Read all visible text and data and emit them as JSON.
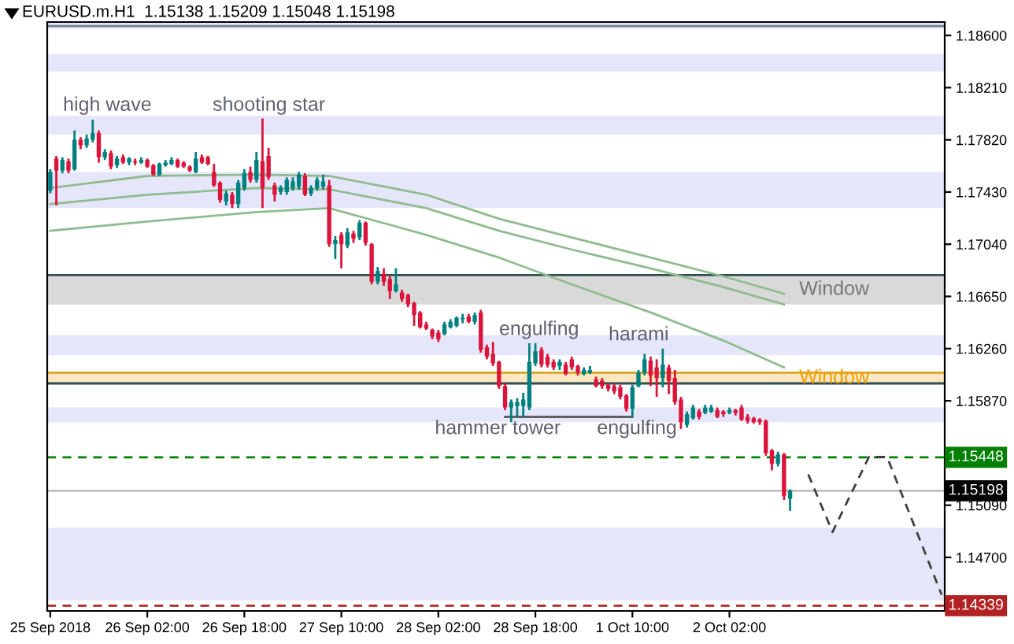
{
  "chart_data": {
    "type": "candlestick",
    "title": "EURUSD.m.H1  1.15138 1.15209 1.15048 1.15198",
    "categories": [
      "25 Sep 2018",
      null,
      null,
      null,
      null,
      null,
      null,
      null,
      null,
      null,
      null,
      null,
      null,
      null,
      null,
      null,
      "26 Sep 02:00",
      null,
      null,
      null,
      null,
      null,
      null,
      null,
      null,
      null,
      null,
      null,
      null,
      null,
      null,
      null,
      "26 Sep 18:00",
      null,
      null,
      null,
      null,
      null,
      null,
      null,
      null,
      null,
      null,
      null,
      null,
      null,
      null,
      null,
      "27 Sep 10:00",
      null,
      null,
      null,
      null,
      null,
      null,
      null,
      null,
      null,
      null,
      null,
      null,
      null,
      null,
      null,
      "28 Sep 02:00",
      null,
      null,
      null,
      null,
      null,
      null,
      null,
      null,
      null,
      null,
      null,
      null,
      null,
      null,
      null,
      "28 Sep 18:00",
      null,
      null,
      null,
      null,
      null,
      null,
      null,
      null,
      null,
      null,
      null,
      null,
      null,
      null,
      null,
      "1 Oct 10:00",
      null,
      null,
      null,
      null,
      null,
      null,
      null,
      null,
      null,
      null,
      null,
      null,
      null,
      null,
      null,
      "2 Oct 02:00",
      null,
      null,
      null,
      null,
      null,
      null,
      null,
      null,
      null,
      null,
      null,
      null,
      null,
      null,
      null,
      null,
      null,
      null,
      null,
      null,
      null,
      null,
      null,
      null,
      null,
      null,
      null,
      null,
      null,
      null,
      null,
      null,
      null,
      null,
      null
    ],
    "colors": [
      "#008080",
      "#dc143c",
      "#008080",
      "#dc143c",
      "#008080",
      "#dc143c",
      "#008080",
      "#008080",
      "#dc143c",
      "#008080",
      "#dc143c",
      "#008080",
      "#dc143c",
      "#008080",
      "#dc143c",
      "#008080",
      "#dc143c",
      "#dc143c",
      "#008080",
      "#008080",
      "#008080",
      "#dc143c",
      "#dc143c",
      "#dc143c",
      "#008080",
      "#dc143c",
      "#dc143c",
      "#dc143c",
      "#dc143c",
      "#008080",
      "#dc143c",
      "#008080",
      "#008080",
      "#dc143c",
      "#008080",
      "#dc143c",
      "#dc143c",
      "#dc143c",
      "#008080",
      "#008080",
      "#008080",
      "#008080",
      "#dc143c",
      "#008080",
      "#008080",
      "#008080",
      "#dc143c",
      "#008080",
      "#dc143c",
      "#008080",
      "#dc143c",
      "#008080",
      "#dc143c",
      "#dc143c",
      "#008080",
      "#dc143c",
      "#dc143c",
      "#008080",
      "#dc143c",
      "#dc143c",
      "#dc143c",
      "#dc143c",
      "#dc143c",
      "#dc143c",
      "#dc143c",
      "#008080",
      "#008080",
      "#008080",
      "#008080",
      "#dc143c",
      "#008080",
      "#dc143c",
      "#dc143c",
      "#dc143c",
      "#dc143c",
      "#dc143c",
      "#008080",
      "#008080",
      "#008080",
      "#008080",
      "#008080",
      "#dc143c",
      "#dc143c",
      "#dc143c",
      "#008080",
      "#dc143c",
      "#dc143c",
      "#dc143c",
      "#008080",
      "#008080",
      "#dc143c",
      "#dc143c",
      "#dc143c",
      "#dc143c",
      "#dc143c",
      "#dc143c",
      "#008080",
      "#008080",
      "#008080",
      "#dc143c",
      "#dc143c",
      "#008080",
      "#dc143c",
      "#dc143c",
      "#dc143c",
      "#008080",
      "#008080",
      "#dc143c",
      "#008080",
      "#008080",
      "#dc143c",
      "#dc143c",
      "#008080",
      "#dc143c",
      "#dc143c",
      "#dc143c",
      "#dc143c",
      "#dc143c",
      "#dc143c",
      "#dc143c",
      "#008080",
      "#dc143c",
      "#008080",
      null,
      null,
      null,
      null,
      null,
      null,
      null,
      null,
      null,
      null,
      null,
      null,
      null,
      null,
      null,
      null,
      null,
      null,
      null,
      null,
      null,
      null,
      null,
      null,
      null
    ],
    "ohlc": [
      [
        1.1744,
        1.176,
        1.1742,
        1.1758
      ],
      [
        1.1768,
        1.177,
        1.1733,
        1.1759
      ],
      [
        1.1759,
        1.1769,
        1.1757,
        1.1767
      ],
      [
        1.1766,
        1.1768,
        1.1757,
        1.1759
      ],
      [
        1.176,
        1.1789,
        1.1759,
        1.1782
      ],
      [
        1.1782,
        1.1784,
        1.1775,
        1.1778
      ],
      [
        1.1778,
        1.1786,
        1.1776,
        1.1783
      ],
      [
        1.1782,
        1.1797,
        1.178,
        1.1787
      ],
      [
        1.1787,
        1.1789,
        1.1765,
        1.1769
      ],
      [
        1.1769,
        1.1775,
        1.1767,
        1.1773
      ],
      [
        1.1772,
        1.1774,
        1.176,
        1.1762
      ],
      [
        1.1763,
        1.177,
        1.1761,
        1.1768
      ],
      [
        1.1769,
        1.1771,
        1.1764,
        1.1765
      ],
      [
        1.1765,
        1.1769,
        1.1763,
        1.1768
      ],
      [
        1.1766,
        1.1768,
        1.1763,
        1.1765
      ],
      [
        1.1765,
        1.1769,
        1.1764,
        1.1767
      ],
      [
        1.1767,
        1.1768,
        1.1761,
        1.1762
      ],
      [
        1.1763,
        1.1764,
        1.1755,
        1.1756
      ],
      [
        1.1756,
        1.1765,
        1.1755,
        1.1764
      ],
      [
        1.1763,
        1.1767,
        1.1762,
        1.1765
      ],
      [
        1.1764,
        1.1769,
        1.1763,
        1.1767
      ],
      [
        1.1767,
        1.1768,
        1.1761,
        1.1762
      ],
      [
        1.1765,
        1.1766,
        1.1761,
        1.1762
      ],
      [
        1.1762,
        1.1763,
        1.1758,
        1.1759
      ],
      [
        1.1758,
        1.1773,
        1.1757,
        1.1768
      ],
      [
        1.1769,
        1.1771,
        1.1764,
        1.1765
      ],
      [
        1.1769,
        1.177,
        1.1763,
        1.1764
      ],
      [
        1.1758,
        1.1764,
        1.1747,
        1.1748
      ],
      [
        1.175,
        1.1751,
        1.1735,
        1.1737
      ],
      [
        1.1736,
        1.1744,
        1.1733,
        1.1742
      ],
      [
        1.1741,
        1.1743,
        1.1731,
        1.1734
      ],
      [
        1.1734,
        1.1752,
        1.1731,
        1.175
      ],
      [
        1.1746,
        1.176,
        1.1744,
        1.1757
      ],
      [
        1.1758,
        1.1762,
        1.175,
        1.1752
      ],
      [
        1.1752,
        1.1773,
        1.175,
        1.1767
      ],
      [
        1.1766,
        1.1798,
        1.1731,
        1.1746
      ],
      [
        1.177,
        1.1776,
        1.1752,
        1.1754
      ],
      [
        1.1748,
        1.175,
        1.1736,
        1.1741
      ],
      [
        1.1743,
        1.1748,
        1.1741,
        1.1746
      ],
      [
        1.1743,
        1.1754,
        1.1741,
        1.1752
      ],
      [
        1.1746,
        1.1754,
        1.1744,
        1.1751
      ],
      [
        1.1747,
        1.1758,
        1.1745,
        1.1756
      ],
      [
        1.1755,
        1.1757,
        1.174,
        1.1741
      ],
      [
        1.1742,
        1.1748,
        1.174,
        1.1746
      ],
      [
        1.1746,
        1.1754,
        1.1744,
        1.1752
      ],
      [
        1.1747,
        1.1756,
        1.1745,
        1.1751
      ],
      [
        1.1748,
        1.1752,
        1.1702,
        1.1704
      ],
      [
        1.1704,
        1.171,
        1.1693,
        1.1707
      ],
      [
        1.1711,
        1.1713,
        1.1686,
        1.1704
      ],
      [
        1.1703,
        1.1716,
        1.1701,
        1.1713
      ],
      [
        1.1712,
        1.1714,
        1.1705,
        1.1708
      ],
      [
        1.1709,
        1.1722,
        1.1707,
        1.172
      ],
      [
        1.172,
        1.1721,
        1.1703,
        1.1705
      ],
      [
        1.1704,
        1.1705,
        1.1674,
        1.1676
      ],
      [
        1.1676,
        1.1687,
        1.1674,
        1.1684
      ],
      [
        1.1682,
        1.1686,
        1.1673,
        1.1676
      ],
      [
        1.1678,
        1.168,
        1.1663,
        1.1669
      ],
      [
        1.1669,
        1.1686,
        1.1668,
        1.1674
      ],
      [
        1.1668,
        1.167,
        1.1661,
        1.1663
      ],
      [
        1.1666,
        1.1667,
        1.1657,
        1.1659
      ],
      [
        1.166,
        1.1661,
        1.1643,
        1.1651
      ],
      [
        1.1653,
        1.1654,
        1.1641,
        1.1642
      ],
      [
        1.1644,
        1.1646,
        1.164,
        1.1641
      ],
      [
        1.164,
        1.1641,
        1.1633,
        1.1635
      ],
      [
        1.1638,
        1.164,
        1.1631,
        1.1633
      ],
      [
        1.1637,
        1.1646,
        1.1636,
        1.1644
      ],
      [
        1.1642,
        1.1648,
        1.1641,
        1.1646
      ],
      [
        1.1643,
        1.165,
        1.1642,
        1.1649
      ],
      [
        1.1648,
        1.1652,
        1.1645,
        1.1649
      ],
      [
        1.165,
        1.1652,
        1.1645,
        1.1646
      ],
      [
        1.1646,
        1.1653,
        1.1644,
        1.1651
      ],
      [
        1.1653,
        1.1655,
        1.1623,
        1.1625
      ],
      [
        1.1627,
        1.1629,
        1.1618,
        1.162
      ],
      [
        1.1622,
        1.1631,
        1.1613,
        1.1615
      ],
      [
        1.1616,
        1.1617,
        1.1596,
        1.1598
      ],
      [
        1.1598,
        1.16,
        1.158,
        1.1582
      ],
      [
        1.1582,
        1.1588,
        1.1571,
        1.1586
      ],
      [
        1.1583,
        1.1589,
        1.1575,
        1.1586
      ],
      [
        1.1583,
        1.1593,
        1.1575,
        1.1588
      ],
      [
        1.1582,
        1.163,
        1.158,
        1.1616
      ],
      [
        1.1615,
        1.163,
        1.1613,
        1.1624
      ],
      [
        1.1625,
        1.1627,
        1.1612,
        1.1614
      ],
      [
        1.162,
        1.1622,
        1.1612,
        1.1614
      ],
      [
        1.1616,
        1.1618,
        1.161,
        1.1612
      ],
      [
        1.1613,
        1.1618,
        1.161,
        1.1616
      ],
      [
        1.1614,
        1.1616,
        1.1606,
        1.1607
      ],
      [
        1.1618,
        1.162,
        1.161,
        1.1612
      ],
      [
        1.1613,
        1.1614,
        1.1606,
        1.1608
      ],
      [
        1.1607,
        1.1612,
        1.1606,
        1.161
      ],
      [
        1.1608,
        1.1613,
        1.1607,
        1.161
      ],
      [
        1.1603,
        1.1605,
        1.1597,
        1.1598
      ],
      [
        1.1602,
        1.1604,
        1.1596,
        1.1598
      ],
      [
        1.1599,
        1.16,
        1.1594,
        1.1596
      ],
      [
        1.1598,
        1.16,
        1.1592,
        1.1594
      ],
      [
        1.1597,
        1.1599,
        1.1588,
        1.159
      ],
      [
        1.1591,
        1.1592,
        1.1579,
        1.1581
      ],
      [
        1.1581,
        1.1599,
        1.1575,
        1.1597
      ],
      [
        1.1598,
        1.161,
        1.1597,
        1.1608
      ],
      [
        1.1608,
        1.1622,
        1.1606,
        1.1618
      ],
      [
        1.1617,
        1.162,
        1.1598,
        1.1606
      ],
      [
        1.1612,
        1.1618,
        1.159,
        1.1604
      ],
      [
        1.1604,
        1.1626,
        1.1597,
        1.1614
      ],
      [
        1.1612,
        1.1614,
        1.1592,
        1.1602
      ],
      [
        1.1604,
        1.161,
        1.1584,
        1.1586
      ],
      [
        1.1588,
        1.159,
        1.1566,
        1.1571
      ],
      [
        1.1569,
        1.1579,
        1.1567,
        1.1577
      ],
      [
        1.1574,
        1.1584,
        1.1573,
        1.1582
      ],
      [
        1.1579,
        1.1581,
        1.1573,
        1.1575
      ],
      [
        1.1578,
        1.1584,
        1.1577,
        1.1582
      ],
      [
        1.1579,
        1.1584,
        1.1578,
        1.1582
      ],
      [
        1.158,
        1.1582,
        1.1574,
        1.1575
      ],
      [
        1.1579,
        1.158,
        1.1575,
        1.1577
      ],
      [
        1.1578,
        1.1582,
        1.1577,
        1.158
      ],
      [
        1.158,
        1.1581,
        1.1576,
        1.1578
      ],
      [
        1.1582,
        1.1584,
        1.1572,
        1.1573
      ],
      [
        1.1575,
        1.1577,
        1.157,
        1.1572
      ],
      [
        1.1574,
        1.1575,
        1.157,
        1.1571
      ],
      [
        1.1573,
        1.1574,
        1.1569,
        1.1571
      ],
      [
        1.1572,
        1.1573,
        1.1546,
        1.1548
      ],
      [
        1.155,
        1.1551,
        1.1535,
        1.154
      ],
      [
        1.154,
        1.1549,
        1.1538,
        1.1547
      ],
      [
        1.1547,
        1.1548,
        1.1513,
        1.1516
      ],
      [
        1.15138,
        1.15209,
        1.15048,
        1.15198
      ],
      null,
      null,
      null,
      null,
      null,
      null,
      null,
      null,
      null,
      null,
      null,
      null,
      null,
      null,
      null,
      null,
      null,
      null,
      null,
      null,
      null,
      null,
      null,
      null,
      null
    ],
    "series": [
      {
        "type": "line",
        "color": "#8fbc8f",
        "values": [
          1.1746,
          null,
          null,
          null,
          null,
          null,
          null,
          null,
          null,
          null,
          null,
          null,
          null,
          null,
          null,
          null,
          1.1755,
          null,
          null,
          null,
          null,
          null,
          null,
          null,
          null,
          null,
          null,
          null,
          null,
          null,
          null,
          null,
          null,
          null,
          1.1756,
          null,
          null,
          null,
          null,
          null,
          null,
          null,
          null,
          null,
          null,
          null,
          1.1755,
          null,
          null,
          null,
          null,
          null,
          null,
          null,
          null,
          null,
          null,
          null,
          null,
          null,
          null,
          null,
          1.1741,
          null,
          null,
          null,
          null,
          null,
          null,
          null,
          null,
          null,
          null,
          null,
          1.1723,
          null,
          null,
          null,
          null,
          null,
          null,
          null,
          null,
          null,
          null,
          null,
          1.1709,
          null,
          null,
          null,
          null,
          null,
          null,
          null,
          null,
          null,
          null,
          null,
          null,
          1.1694,
          null,
          null,
          null,
          null,
          null,
          null,
          null,
          null,
          null,
          null,
          null,
          1.168,
          null,
          null,
          null,
          null,
          null,
          null,
          null,
          null,
          null,
          1.1667,
          null,
          null,
          null,
          null,
          null,
          null,
          null,
          null,
          null,
          null,
          null,
          null,
          null,
          null,
          null,
          null,
          null,
          null,
          null,
          null,
          null,
          null,
          null,
          null,
          null,
          null
        ]
      },
      {
        "type": "line",
        "color": "#8fbc8f",
        "values": [
          1.1734,
          null,
          null,
          null,
          null,
          null,
          null,
          null,
          null,
          null,
          null,
          null,
          null,
          null,
          null,
          null,
          1.1741,
          null,
          null,
          null,
          null,
          null,
          null,
          null,
          null,
          null,
          null,
          null,
          null,
          null,
          null,
          null,
          null,
          null,
          1.1746,
          null,
          null,
          null,
          null,
          null,
          null,
          null,
          null,
          null,
          null,
          null,
          1.1745,
          null,
          null,
          null,
          null,
          null,
          null,
          null,
          null,
          null,
          null,
          null,
          null,
          null,
          null,
          null,
          1.1731,
          null,
          null,
          null,
          null,
          null,
          null,
          null,
          null,
          null,
          null,
          null,
          1.1714,
          null,
          null,
          null,
          null,
          null,
          null,
          null,
          null,
          null,
          null,
          null,
          1.17,
          null,
          null,
          null,
          null,
          null,
          null,
          null,
          null,
          null,
          null,
          null,
          null,
          1.1686,
          null,
          null,
          null,
          null,
          null,
          null,
          null,
          null,
          null,
          null,
          null,
          1.1672,
          null,
          null,
          null,
          null,
          null,
          null,
          null,
          null,
          null,
          1.1659,
          null,
          null,
          null,
          null,
          null,
          null,
          null,
          null,
          null,
          null,
          null,
          null,
          null,
          null,
          null,
          null,
          null,
          null,
          null,
          null,
          null,
          null,
          null,
          null,
          null,
          null
        ]
      },
      {
        "type": "line",
        "color": "#8fbc8f",
        "values": [
          1.1714,
          null,
          null,
          null,
          null,
          null,
          null,
          null,
          null,
          null,
          null,
          null,
          null,
          null,
          null,
          null,
          1.1721,
          null,
          null,
          null,
          null,
          null,
          null,
          null,
          null,
          null,
          null,
          null,
          null,
          null,
          null,
          null,
          null,
          null,
          1.1728,
          null,
          null,
          null,
          null,
          null,
          null,
          null,
          null,
          null,
          null,
          null,
          1.1731,
          null,
          null,
          null,
          null,
          null,
          null,
          null,
          null,
          null,
          null,
          null,
          null,
          null,
          null,
          null,
          1.1711,
          null,
          null,
          null,
          null,
          null,
          null,
          null,
          null,
          null,
          null,
          null,
          1.1694,
          null,
          null,
          null,
          null,
          null,
          null,
          null,
          null,
          null,
          null,
          null,
          1.1674,
          null,
          null,
          null,
          null,
          null,
          null,
          null,
          null,
          null,
          null,
          null,
          null,
          1.1653,
          null,
          null,
          null,
          null,
          null,
          null,
          null,
          null,
          null,
          null,
          null,
          1.1632,
          null,
          null,
          null,
          null,
          null,
          null,
          null,
          null,
          null,
          1.1612,
          null,
          null,
          null,
          null,
          null,
          null,
          null,
          null,
          null,
          null,
          null,
          null,
          null,
          null,
          null,
          null,
          null,
          null,
          null,
          null,
          null,
          null,
          null,
          null,
          null,
          null
        ]
      },
      {
        "type": "line",
        "color": "#606060",
        "values": [
          null,
          null,
          null,
          null,
          null,
          null,
          null,
          null,
          null,
          null,
          null,
          null,
          null,
          null,
          null,
          null,
          null,
          null,
          null,
          null,
          null,
          null,
          null,
          null,
          null,
          null,
          null,
          null,
          null,
          null,
          null,
          null,
          null,
          null,
          null,
          null,
          null,
          null,
          null,
          null,
          null,
          null,
          null,
          null,
          null,
          null,
          null,
          null,
          null,
          null,
          null,
          null,
          null,
          null,
          null,
          null,
          null,
          null,
          null,
          null,
          null,
          null,
          null,
          null,
          null,
          null,
          null,
          null,
          null,
          null,
          null,
          null,
          null,
          null,
          null,
          1.1575,
          null,
          null,
          null,
          null,
          null,
          null,
          null,
          null,
          null,
          null,
          null,
          null,
          null,
          null,
          null,
          null,
          null,
          null,
          null,
          null,
          1.1575,
          null,
          null,
          null,
          null,
          null,
          null,
          null,
          null,
          null,
          null,
          null,
          null,
          null,
          null,
          null,
          null,
          null,
          null,
          null,
          null,
          null,
          null,
          null,
          null,
          null,
          null,
          null,
          null,
          null,
          null,
          null,
          null,
          null,
          null,
          null,
          null,
          null,
          null,
          null,
          null,
          null,
          null,
          null,
          null,
          null,
          null,
          null,
          null,
          null,
          null,
          null
        ]
      },
      {
        "type": "line",
        "color": "#404040",
        "line_style": "dashed",
        "values": [
          null,
          null,
          null,
          null,
          null,
          null,
          null,
          null,
          null,
          null,
          null,
          null,
          null,
          null,
          null,
          null,
          null,
          null,
          null,
          null,
          null,
          null,
          null,
          null,
          null,
          null,
          null,
          null,
          null,
          null,
          null,
          null,
          null,
          null,
          null,
          null,
          null,
          null,
          null,
          null,
          null,
          null,
          null,
          null,
          null,
          null,
          null,
          null,
          null,
          null,
          null,
          null,
          null,
          null,
          null,
          null,
          null,
          null,
          null,
          null,
          null,
          null,
          null,
          null,
          null,
          null,
          null,
          null,
          null,
          null,
          null,
          null,
          null,
          null,
          null,
          null,
          null,
          null,
          null,
          null,
          null,
          null,
          null,
          null,
          null,
          null,
          null,
          null,
          null,
          null,
          null,
          null,
          null,
          null,
          null,
          null,
          null,
          null,
          null,
          null,
          null,
          null,
          null,
          null,
          null,
          null,
          null,
          null,
          null,
          null,
          null,
          null,
          null,
          null,
          null,
          null,
          null,
          null,
          null,
          null,
          null,
          null,
          null,
          null,
          null,
          1.1532,
          null,
          null,
          null,
          1.1489,
          null,
          null,
          null,
          null,
          null,
          1.1545,
          null,
          null,
          1.1545,
          null,
          null,
          null,
          null,
          null,
          null,
          null,
          null,
          1.1442
        ]
      }
    ],
    "bands": [
      {
        "axis": "y",
        "from": 1.1865,
        "to": 1.187,
        "color": "#e6e6fa"
      },
      {
        "axis": "y",
        "from": 1.1833,
        "to": 1.1846,
        "color": "#e6e6fa"
      },
      {
        "axis": "y",
        "from": 1.1786,
        "to": 1.18,
        "color": "#e6e6fa"
      },
      {
        "axis": "y",
        "from": 1.1731,
        "to": 1.1758,
        "color": "#e6e6fa"
      },
      {
        "axis": "y",
        "from": 1.1659,
        "to": 1.1681,
        "color": "#d9d9d9",
        "label": "Window"
      },
      {
        "axis": "y",
        "from": 1.1621,
        "to": 1.1636,
        "color": "#e6e6fa"
      },
      {
        "axis": "y",
        "from": 1.16,
        "to": 1.1608,
        "color": "#fbe7c2",
        "label": "Window"
      },
      {
        "axis": "y",
        "from": 1.1571,
        "to": 1.1582,
        "color": "#e6e6fa"
      },
      {
        "axis": "y",
        "from": 1.1438,
        "to": 1.1492,
        "color": "#e6e6fa"
      }
    ],
    "ref_lines": [
      {
        "axis": "y",
        "value": 1.1867,
        "color": "#708090"
      },
      {
        "axis": "y",
        "value": 1.1681,
        "color": "#2f4f4f"
      },
      {
        "axis": "y",
        "value": 1.1608,
        "color": "#daa520"
      },
      {
        "axis": "y",
        "value": 1.16,
        "color": "#2f4f4f"
      },
      {
        "axis": "y",
        "value": 1.15448,
        "label": "1.15448",
        "color": "#008000",
        "line_style": "dashed"
      },
      {
        "axis": "y",
        "value": 1.15198,
        "label": "1.15198",
        "color": "#c0c0c0"
      },
      {
        "axis": "y",
        "value": 1.14339,
        "label": "1.14339",
        "color": "#b22222",
        "line_style": "dashed"
      }
    ],
    "annotations": [
      "high wave",
      "shooting star",
      {
        "text": "engulfing",
        "y": 1.164
      },
      {
        "text": "harami",
        "y": 1.1636
      },
      {
        "text": "hammer tower",
        "y": 1.1566
      },
      {
        "text": "engulfing",
        "y": 1.1566
      }
    ],
    "ylim": [
      1.143,
      1.187
    ],
    "yticks": [
      {
        "value": 1.186,
        "label": "1.18600"
      },
      {
        "value": 1.1821,
        "label": "1.18210"
      },
      {
        "value": 1.1782,
        "label": "1.17820"
      },
      {
        "value": 1.1743,
        "label": "1.17430"
      },
      {
        "value": 1.1704,
        "label": "1.17040"
      },
      {
        "value": 1.1665,
        "label": "1.16650"
      },
      {
        "value": 1.1626,
        "label": "1.16260"
      },
      {
        "value": 1.1587,
        "label": "1.15870"
      },
      {
        "value": 1.1509,
        "label": "1.15090"
      },
      {
        "value": 1.147,
        "label": "1.14700"
      }
    ],
    "grid": false
  }
}
